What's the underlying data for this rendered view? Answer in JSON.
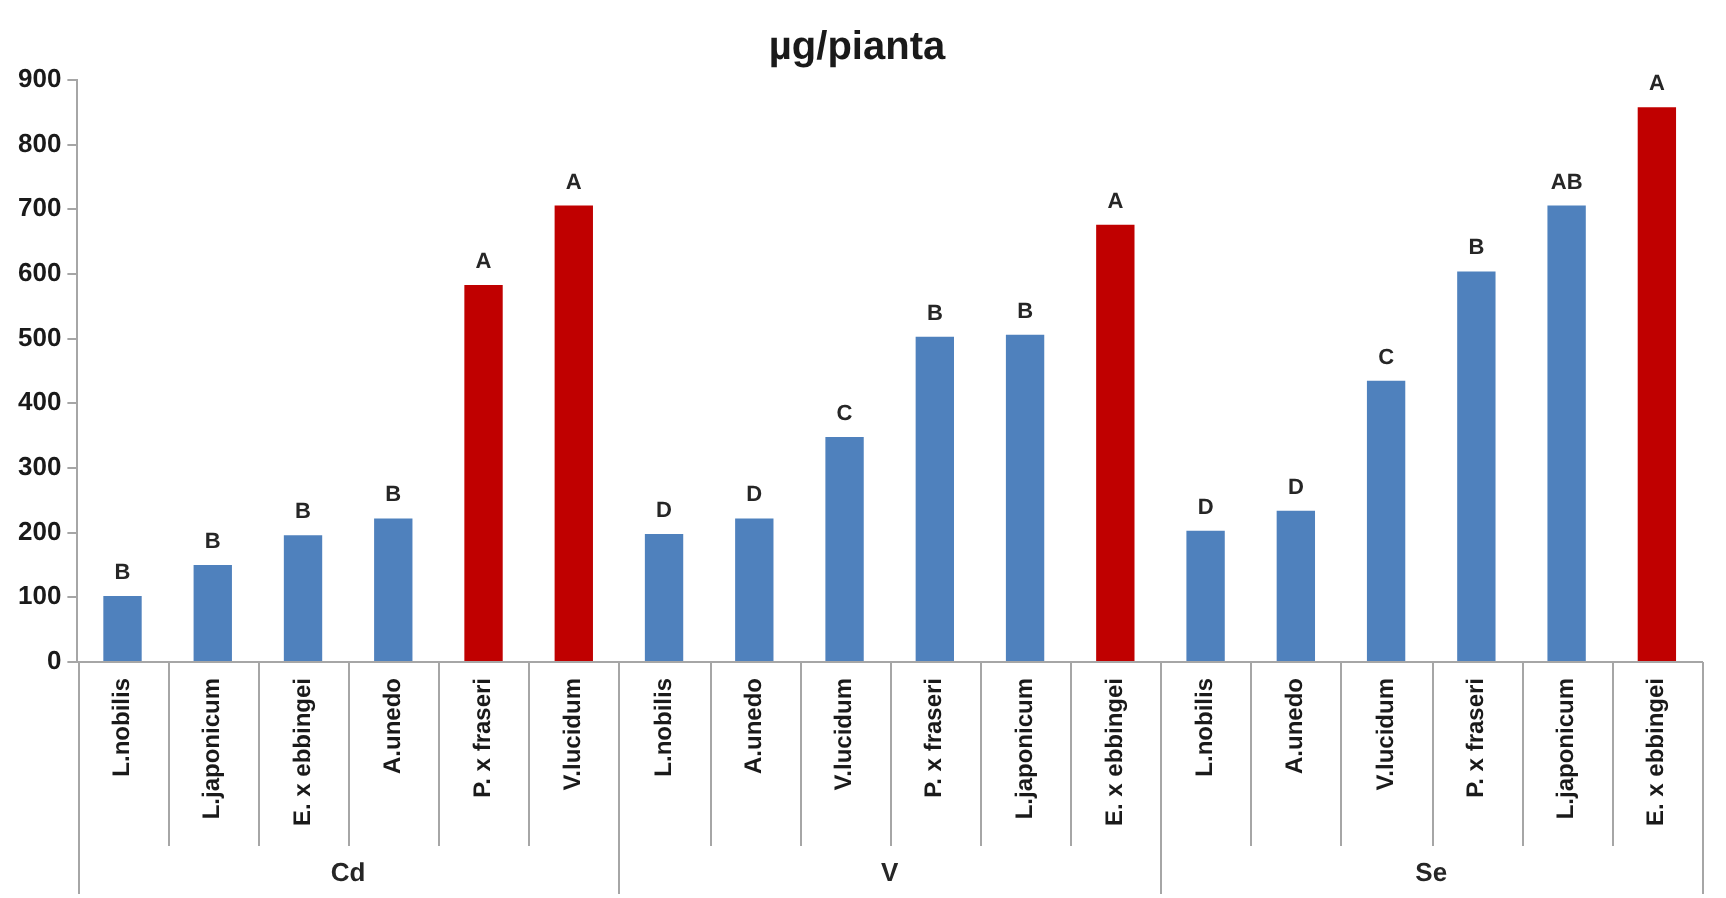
{
  "chart_data": {
    "type": "bar",
    "title": "µg/pianta",
    "categories": [
      "L.nobilis",
      "L.japonicum",
      "E. x ebbingei",
      "A.unedo",
      "P. x fraseri",
      "V.lucidum",
      "L.nobilis",
      "A.unedo",
      "V.lucidum",
      "P. x fraseri",
      "L.japonicum",
      "E. x ebbingei",
      "L.nobilis",
      "A.unedo",
      "V.lucidum",
      "P. x fraseri",
      "L.japonicum",
      "E. x ebbingei"
    ],
    "values": [
      102,
      150,
      196,
      222,
      583,
      706,
      198,
      222,
      348,
      503,
      506,
      676,
      203,
      234,
      435,
      604,
      706,
      858
    ],
    "colors": [
      "#4f81bd",
      "#4f81bd",
      "#4f81bd",
      "#4f81bd",
      "#c00000",
      "#c00000",
      "#4f81bd",
      "#4f81bd",
      "#4f81bd",
      "#4f81bd",
      "#4f81bd",
      "#c00000",
      "#4f81bd",
      "#4f81bd",
      "#4f81bd",
      "#4f81bd",
      "#4f81bd",
      "#c00000"
    ],
    "value_labels": [
      "B",
      "B",
      "B",
      "B",
      "A",
      "A",
      "D",
      "D",
      "C",
      "B",
      "B",
      "A",
      "D",
      "D",
      "C",
      "B",
      "AB",
      "A"
    ],
    "annotations": [
      "Cd",
      "V",
      "Se"
    ],
    "ylim": [
      0,
      900
    ],
    "yticks": [
      0,
      100,
      200,
      300,
      400,
      500,
      600,
      700,
      800,
      900
    ],
    "grid": false,
    "legend": false
  }
}
